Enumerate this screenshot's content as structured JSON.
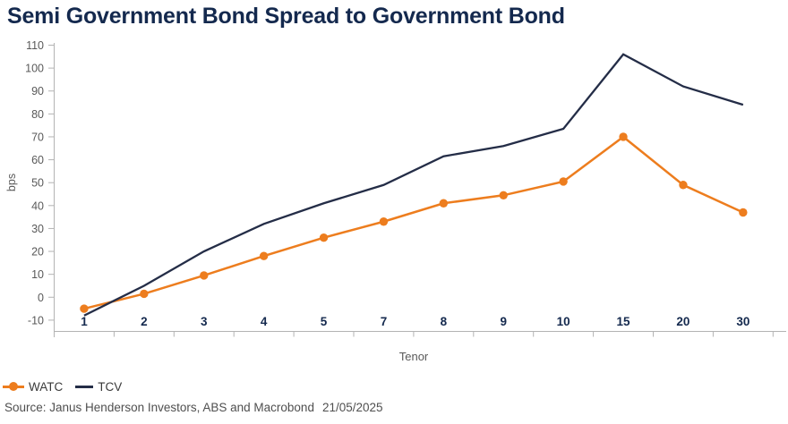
{
  "title": "Semi Government Bond Spread to Government Bond",
  "chart_data": {
    "type": "line",
    "title": "Semi Government Bond Spread to Government Bond",
    "xlabel": "Tenor",
    "ylabel": "bps",
    "ylim": [
      -10,
      110
    ],
    "ytick_step": 10,
    "grid": false,
    "legend_position": "bottom-left",
    "categories": [
      "1",
      "2",
      "3",
      "4",
      "5",
      "7",
      "8",
      "9",
      "10",
      "15",
      "20",
      "30"
    ],
    "series": [
      {
        "name": "WATC",
        "color": "#ed7d1e",
        "marker": "circle",
        "values": [
          -5,
          1.5,
          9.5,
          18,
          26,
          33,
          41,
          44.5,
          50.5,
          70,
          49,
          37
        ]
      },
      {
        "name": "TCV",
        "color": "#242d47",
        "marker": "none",
        "values": [
          -8,
          5,
          20,
          32,
          41,
          49,
          61.5,
          66,
          73.5,
          106,
          92,
          84
        ]
      }
    ]
  },
  "colors": {
    "title": "#14294e",
    "watc": "#ed7d1e",
    "tcv": "#242d47",
    "axis_line": "#b3b3b3",
    "y_tick_label": "#595959",
    "x_tick_label": "#14294e",
    "axis_title": "#595959"
  },
  "source": {
    "text": "Source: Janus Henderson Investors, ABS and Macrobond",
    "date": "21/05/2025"
  }
}
